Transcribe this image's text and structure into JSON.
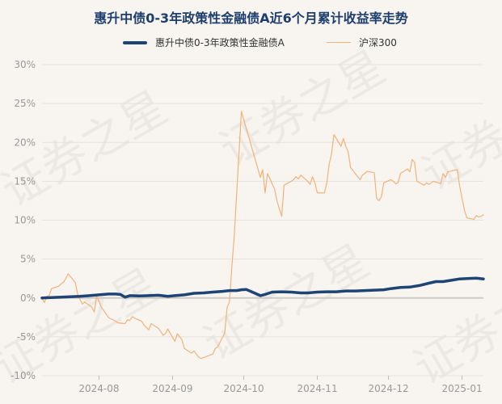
{
  "title": "惠升中债0-3年政策性金融债A近6个月累计收益率走势",
  "watermark": "证券之星",
  "colors": {
    "fund": "#1d4474",
    "index": "#f2b27a",
    "grid": "#e6e1da",
    "zero": "#cfcac3"
  },
  "chart_data": {
    "type": "line",
    "title": "惠升中债0-3年政策性金融债A近6个月累计收益率走势",
    "xlabel": "",
    "ylabel": "",
    "ylim": [
      -10,
      30
    ],
    "yticks": [
      -10,
      -5,
      0,
      5,
      10,
      15,
      20,
      25,
      30
    ],
    "ytick_labels": [
      "-10%",
      "-5%",
      "0%",
      "5%",
      "10%",
      "15%",
      "20%",
      "25%",
      "30%"
    ],
    "xlim": [
      "2024-07-08",
      "2025-01-10"
    ],
    "xticks": [
      "2024-08-01",
      "2024-09-01",
      "2024-10-01",
      "2024-11-01",
      "2024-12-01",
      "2025-01-01"
    ],
    "xtick_labels": [
      "2024-08",
      "2024-09",
      "2024-10",
      "2024-11",
      "2024-12",
      "2025-01"
    ],
    "grid": true,
    "legend_position": "top",
    "series": [
      {
        "name": "惠升中债0-3年政策性金融债A",
        "color": "#1d4474",
        "points": [
          [
            "2024-07-08",
            0.0
          ],
          [
            "2024-07-12",
            0.05
          ],
          [
            "2024-07-16",
            0.1
          ],
          [
            "2024-07-20",
            0.15
          ],
          [
            "2024-07-24",
            0.2
          ],
          [
            "2024-07-28",
            0.3
          ],
          [
            "2024-08-01",
            0.4
          ],
          [
            "2024-08-05",
            0.5
          ],
          [
            "2024-08-08",
            0.5
          ],
          [
            "2024-08-10",
            0.45
          ],
          [
            "2024-08-12",
            0.1
          ],
          [
            "2024-08-14",
            0.3
          ],
          [
            "2024-08-18",
            0.25
          ],
          [
            "2024-08-22",
            0.3
          ],
          [
            "2024-08-26",
            0.35
          ],
          [
            "2024-08-30",
            0.2
          ],
          [
            "2024-09-02",
            0.3
          ],
          [
            "2024-09-06",
            0.4
          ],
          [
            "2024-09-10",
            0.6
          ],
          [
            "2024-09-14",
            0.65
          ],
          [
            "2024-09-18",
            0.75
          ],
          [
            "2024-09-22",
            0.85
          ],
          [
            "2024-09-25",
            0.95
          ],
          [
            "2024-09-28",
            0.95
          ],
          [
            "2024-09-30",
            1.05
          ],
          [
            "2024-10-02",
            1.1
          ],
          [
            "2024-10-05",
            0.7
          ],
          [
            "2024-10-08",
            0.3
          ],
          [
            "2024-10-10",
            0.45
          ],
          [
            "2024-10-13",
            0.75
          ],
          [
            "2024-10-17",
            0.8
          ],
          [
            "2024-10-21",
            0.75
          ],
          [
            "2024-10-25",
            0.65
          ],
          [
            "2024-10-28",
            0.65
          ],
          [
            "2024-11-01",
            0.75
          ],
          [
            "2024-11-05",
            0.8
          ],
          [
            "2024-11-09",
            0.8
          ],
          [
            "2024-11-13",
            0.9
          ],
          [
            "2024-11-17",
            0.9
          ],
          [
            "2024-11-21",
            0.95
          ],
          [
            "2024-11-25",
            1.0
          ],
          [
            "2024-11-29",
            1.05
          ],
          [
            "2024-12-02",
            1.2
          ],
          [
            "2024-12-06",
            1.35
          ],
          [
            "2024-12-10",
            1.4
          ],
          [
            "2024-12-14",
            1.6
          ],
          [
            "2024-12-18",
            1.9
          ],
          [
            "2024-12-21",
            2.1
          ],
          [
            "2024-12-24",
            2.1
          ],
          [
            "2024-12-28",
            2.3
          ],
          [
            "2024-12-31",
            2.45
          ],
          [
            "2025-01-03",
            2.5
          ],
          [
            "2025-01-07",
            2.55
          ],
          [
            "2025-01-10",
            2.45
          ]
        ]
      },
      {
        "name": "沪深300",
        "color": "#f2b27a",
        "points": [
          [
            "2024-07-08",
            0.0
          ],
          [
            "2024-07-09",
            -0.6
          ],
          [
            "2024-07-10",
            0.2
          ],
          [
            "2024-07-11",
            0.3
          ],
          [
            "2024-07-12",
            1.2
          ],
          [
            "2024-07-15",
            1.5
          ],
          [
            "2024-07-16",
            1.8
          ],
          [
            "2024-07-17",
            2.0
          ],
          [
            "2024-07-18",
            2.5
          ],
          [
            "2024-07-19",
            3.1
          ],
          [
            "2024-07-22",
            2.0
          ],
          [
            "2024-07-23",
            0.5
          ],
          [
            "2024-07-24",
            -0.2
          ],
          [
            "2024-07-25",
            -0.8
          ],
          [
            "2024-07-26",
            -0.5
          ],
          [
            "2024-07-29",
            -1.2
          ],
          [
            "2024-07-30",
            -1.8
          ],
          [
            "2024-07-31",
            0.2
          ],
          [
            "2024-08-01",
            -0.4
          ],
          [
            "2024-08-02",
            -1.2
          ],
          [
            "2024-08-05",
            -2.5
          ],
          [
            "2024-08-06",
            -2.7
          ],
          [
            "2024-08-07",
            -2.8
          ],
          [
            "2024-08-08",
            -3.0
          ],
          [
            "2024-08-09",
            -3.2
          ],
          [
            "2024-08-12",
            -3.3
          ],
          [
            "2024-08-13",
            -2.8
          ],
          [
            "2024-08-14",
            -2.9
          ],
          [
            "2024-08-15",
            -2.4
          ],
          [
            "2024-08-16",
            -2.6
          ],
          [
            "2024-08-19",
            -3.0
          ],
          [
            "2024-08-20",
            -3.5
          ],
          [
            "2024-08-21",
            -3.8
          ],
          [
            "2024-08-22",
            -4.1
          ],
          [
            "2024-08-23",
            -3.3
          ],
          [
            "2024-08-26",
            -3.9
          ],
          [
            "2024-08-27",
            -4.3
          ],
          [
            "2024-08-28",
            -4.8
          ],
          [
            "2024-08-29",
            -4.6
          ],
          [
            "2024-08-30",
            -4.0
          ],
          [
            "2024-09-02",
            -5.6
          ],
          [
            "2024-09-03",
            -4.6
          ],
          [
            "2024-09-04",
            -5.0
          ],
          [
            "2024-09-05",
            -5.4
          ],
          [
            "2024-09-06",
            -6.5
          ],
          [
            "2024-09-09",
            -7.1
          ],
          [
            "2024-09-10",
            -6.8
          ],
          [
            "2024-09-11",
            -7.2
          ],
          [
            "2024-09-12",
            -7.6
          ],
          [
            "2024-09-13",
            -7.8
          ],
          [
            "2024-09-18",
            -7.2
          ],
          [
            "2024-09-19",
            -6.5
          ],
          [
            "2024-09-20",
            -6.3
          ],
          [
            "2024-09-23",
            -4.5
          ],
          [
            "2024-09-24",
            -1.2
          ],
          [
            "2024-09-25",
            -0.5
          ],
          [
            "2024-09-26",
            4.0
          ],
          [
            "2024-09-27",
            8.0
          ],
          [
            "2024-09-30",
            24.0
          ],
          [
            "2024-10-08",
            15.5
          ],
          [
            "2024-10-09",
            16.5
          ],
          [
            "2024-10-10",
            13.5
          ],
          [
            "2024-10-11",
            16.0
          ],
          [
            "2024-10-14",
            14.0
          ],
          [
            "2024-10-15",
            12.5
          ],
          [
            "2024-10-16",
            11.5
          ],
          [
            "2024-10-17",
            10.5
          ],
          [
            "2024-10-18",
            14.5
          ],
          [
            "2024-10-21",
            15.0
          ],
          [
            "2024-10-22",
            15.2
          ],
          [
            "2024-10-23",
            15.6
          ],
          [
            "2024-10-24",
            15.3
          ],
          [
            "2024-10-25",
            15.8
          ],
          [
            "2024-10-28",
            15.0
          ],
          [
            "2024-10-29",
            14.6
          ],
          [
            "2024-10-30",
            15.6
          ],
          [
            "2024-10-31",
            14.8
          ],
          [
            "2024-11-01",
            13.5
          ],
          [
            "2024-11-04",
            13.5
          ],
          [
            "2024-11-05",
            14.8
          ],
          [
            "2024-11-06",
            17.2
          ],
          [
            "2024-11-07",
            18.5
          ],
          [
            "2024-11-08",
            21.0
          ],
          [
            "2024-11-11",
            19.5
          ],
          [
            "2024-11-12",
            20.5
          ],
          [
            "2024-11-13",
            19.5
          ],
          [
            "2024-11-14",
            18.8
          ],
          [
            "2024-11-15",
            16.8
          ],
          [
            "2024-11-18",
            15.6
          ],
          [
            "2024-11-19",
            15.2
          ],
          [
            "2024-11-20",
            15.8
          ],
          [
            "2024-11-21",
            16.0
          ],
          [
            "2024-11-22",
            16.3
          ],
          [
            "2024-11-25",
            16.1
          ],
          [
            "2024-11-26",
            12.8
          ],
          [
            "2024-11-27",
            12.5
          ],
          [
            "2024-11-28",
            13.0
          ],
          [
            "2024-11-29",
            14.8
          ],
          [
            "2024-12-02",
            15.2
          ],
          [
            "2024-12-03",
            15.0
          ],
          [
            "2024-12-04",
            14.7
          ],
          [
            "2024-12-05",
            14.8
          ],
          [
            "2024-12-06",
            16.0
          ],
          [
            "2024-12-09",
            16.6
          ],
          [
            "2024-12-10",
            16.2
          ],
          [
            "2024-12-11",
            17.8
          ],
          [
            "2024-12-12",
            17.4
          ],
          [
            "2024-12-13",
            15.0
          ],
          [
            "2024-12-16",
            14.5
          ],
          [
            "2024-12-17",
            14.8
          ],
          [
            "2024-12-18",
            14.6
          ],
          [
            "2024-12-19",
            14.8
          ],
          [
            "2024-12-20",
            15.0
          ],
          [
            "2024-12-23",
            14.7
          ],
          [
            "2024-12-24",
            16.0
          ],
          [
            "2024-12-25",
            15.5
          ],
          [
            "2024-12-26",
            16.2
          ],
          [
            "2024-12-27",
            16.3
          ],
          [
            "2024-12-30",
            16.5
          ],
          [
            "2024-12-31",
            14.4
          ],
          [
            "2025-01-02",
            11.3
          ],
          [
            "2025-01-03",
            10.3
          ],
          [
            "2025-01-06",
            10.1
          ],
          [
            "2025-01-07",
            10.6
          ],
          [
            "2025-01-08",
            10.4
          ],
          [
            "2025-01-09",
            10.5
          ],
          [
            "2025-01-10",
            10.7
          ]
        ]
      }
    ]
  }
}
